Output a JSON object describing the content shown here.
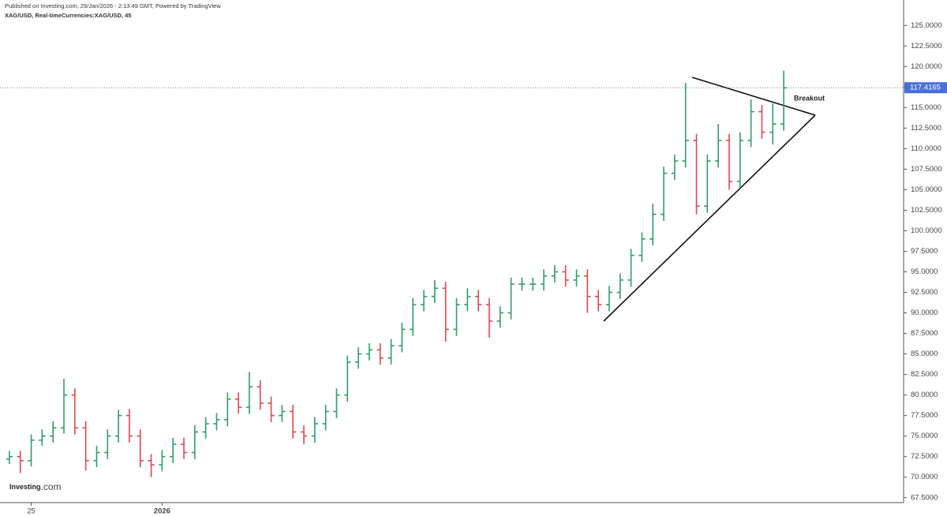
{
  "chart_data": {
    "type": "ohlc",
    "published": "Published on Investing.com, 29/Jan/2026 - 2:13:49 GMT, Powered by TradingView",
    "title": "XAG/USD, Real-timeCurrencies:XAG/USD, 45",
    "annotation": "Breakout",
    "logo_main": "Investing",
    "logo_suffix": ".com",
    "up_color": "#2e9e6c",
    "down_color": "#e0474c",
    "last_price": 117.4165,
    "last_price_color": "#4a6fd8",
    "ylim": [
      66.9,
      128.1
    ],
    "yticks": [
      {
        "value": 67.5,
        "label": "67.5000"
      },
      {
        "value": 70,
        "label": "70.0000"
      },
      {
        "value": 72.5,
        "label": "72.5000"
      },
      {
        "value": 75,
        "label": "75.0000"
      },
      {
        "value": 77.5,
        "label": "77.5000"
      },
      {
        "value": 80,
        "label": "80.0000"
      },
      {
        "value": 82.5,
        "label": "82.5000"
      },
      {
        "value": 85,
        "label": "85.0000"
      },
      {
        "value": 87.5,
        "label": "87.5000"
      },
      {
        "value": 90,
        "label": "90.0000"
      },
      {
        "value": 92.5,
        "label": "92.5000"
      },
      {
        "value": 95,
        "label": "95.0000"
      },
      {
        "value": 97.5,
        "label": "97.5000"
      },
      {
        "value": 100,
        "label": "100.0000"
      },
      {
        "value": 102.5,
        "label": "102.5000"
      },
      {
        "value": 105,
        "label": "105.0000"
      },
      {
        "value": 107.5,
        "label": "107.5000"
      },
      {
        "value": 110,
        "label": "110.0000"
      },
      {
        "value": 112.5,
        "label": "112.5000"
      },
      {
        "value": 115,
        "label": "115.0000"
      },
      {
        "value": 117.5,
        "label": "117.5000"
      },
      {
        "value": 120,
        "label": "120.0000"
      },
      {
        "value": 122.5,
        "label": "122.5000"
      },
      {
        "value": 125,
        "label": "125.0000"
      }
    ],
    "grid": false,
    "categories": [
      null,
      null,
      "25",
      null,
      null,
      null,
      null,
      null,
      null,
      null,
      null,
      null,
      null,
      null,
      "2026",
      null,
      null,
      null,
      null,
      null,
      null,
      null,
      null,
      null,
      null,
      null,
      null,
      null,
      null,
      null,
      null,
      null,
      null,
      null,
      null,
      null,
      null,
      null,
      null,
      null,
      null,
      null,
      null,
      null,
      null,
      null,
      null,
      null,
      null,
      null,
      null,
      null,
      null,
      null,
      null,
      null,
      null,
      null,
      null,
      null,
      null,
      null,
      null,
      null,
      null,
      null,
      null,
      null,
      null,
      null,
      null,
      null
    ],
    "open": [
      72.2,
      72.5,
      72,
      74.5,
      75,
      76,
      80,
      76,
      72,
      73,
      75,
      77.5,
      75,
      72,
      71.5,
      72.5,
      74,
      73,
      75.5,
      76.5,
      77,
      79.5,
      78.5,
      81,
      79,
      77.5,
      78,
      75.5,
      75,
      76.5,
      78,
      80,
      84,
      85,
      85.5,
      84.5,
      86,
      88,
      91,
      92,
      93,
      88,
      91,
      92,
      91,
      89,
      90,
      93.5,
      93.5,
      93.5,
      94.5,
      95,
      94,
      94.5,
      92,
      91,
      92.5,
      94,
      97,
      99,
      102,
      107,
      108.5,
      111,
      103,
      108.5,
      111,
      106,
      111,
      114.5,
      112,
      113
    ],
    "high": [
      73.2,
      73.2,
      75.2,
      75.8,
      76.8,
      82,
      80.8,
      76.8,
      73.8,
      75.8,
      78.2,
      78.3,
      75.8,
      72.8,
      73.3,
      74.8,
      74.8,
      76.3,
      77.3,
      77.8,
      80.3,
      80.3,
      82.8,
      81.8,
      79.8,
      78.8,
      78.8,
      76.3,
      77.3,
      78.8,
      80.8,
      84.8,
      85.8,
      86.3,
      86.3,
      86.8,
      88.8,
      91.8,
      92.8,
      94,
      93.8,
      91.8,
      93,
      92.8,
      91.8,
      90.8,
      94.3,
      94.3,
      94.3,
      95.3,
      95.8,
      95.8,
      95.3,
      95.3,
      92.8,
      93.3,
      94.8,
      97.8,
      99.8,
      103.3,
      107.8,
      109.3,
      118,
      111.8,
      109.3,
      113,
      111.8,
      112,
      116,
      115.3,
      115.5,
      119.5
    ],
    "low": [
      71.6,
      70.5,
      71.3,
      73.8,
      74.2,
      75.3,
      75.2,
      70.8,
      71.2,
      72.2,
      74.2,
      74.2,
      71.2,
      70,
      70.7,
      71.7,
      72.2,
      72.2,
      74.7,
      75.7,
      76.2,
      77.7,
      77.7,
      78.2,
      76.7,
      76.7,
      74.7,
      74,
      74.2,
      75.7,
      77.2,
      79.2,
      83.2,
      84.2,
      83.7,
      83.7,
      85.2,
      87.2,
      90.2,
      91.2,
      86.5,
      87.2,
      90.2,
      90.2,
      87,
      88.2,
      89.2,
      92.7,
      92.7,
      92.7,
      93.7,
      93.2,
      93.2,
      90,
      90.2,
      90.2,
      91.7,
      93.2,
      96.2,
      98.2,
      101.2,
      106.2,
      107.7,
      102,
      102.2,
      107.7,
      105,
      105.2,
      110.2,
      111.2,
      110.5,
      112.2
    ],
    "close": [
      72.5,
      72,
      74.5,
      75,
      76,
      80,
      76,
      72,
      73,
      75,
      77.5,
      75,
      72,
      71.5,
      72.5,
      74,
      73,
      75.5,
      76.5,
      77,
      79.5,
      78.5,
      81,
      79,
      77.5,
      78,
      75.5,
      75,
      76.5,
      78,
      80,
      84,
      85,
      85.5,
      84.5,
      86,
      88,
      91,
      92,
      93,
      88,
      91,
      92,
      91,
      89,
      90,
      93.5,
      93.5,
      93.5,
      94.5,
      95,
      94,
      94.5,
      92,
      91,
      92.5,
      94,
      97,
      99,
      102,
      107,
      108.5,
      111,
      103,
      108.5,
      111,
      106,
      111,
      114.5,
      112,
      113,
      117.4
    ]
  }
}
